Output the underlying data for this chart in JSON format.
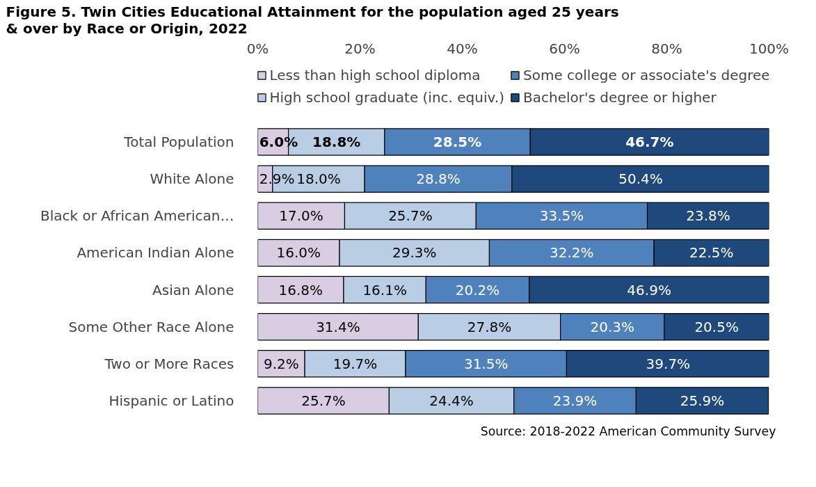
{
  "chart_data": {
    "type": "bar",
    "orientation": "horizontal",
    "stacked": true,
    "title": "Figure 5. Twin Cities Educational Attainment for the population aged 25 years\n& over by Race or Origin, 2022",
    "categories": [
      "Total Population",
      "White Alone",
      "Black or African American…",
      "American Indian Alone",
      "Asian Alone",
      "Some Other Race Alone",
      "Two or More Races",
      "Hispanic or Latino"
    ],
    "series": [
      {
        "name": "Less than high school diploma",
        "color": "#d9cde3",
        "values": [
          6.0,
          2.9,
          17.0,
          16.0,
          16.8,
          31.4,
          9.2,
          25.7
        ],
        "value_labels": [
          "6.0%",
          "2.9%",
          "17.0%",
          "16.0%",
          "16.8%",
          "31.4%",
          "9.2%",
          "25.7%"
        ]
      },
      {
        "name": "High school graduate (inc. equiv.)",
        "color": "#b9cde5",
        "values": [
          18.8,
          18.0,
          25.7,
          29.3,
          16.1,
          27.8,
          19.7,
          24.4
        ],
        "value_labels": [
          "18.8%",
          "18.0%",
          "25.7%",
          "29.3%",
          "16.1%",
          "27.8%",
          "19.7%",
          "24.4%"
        ]
      },
      {
        "name": "Some college or associate's degree",
        "color": "#4f81bd",
        "values": [
          28.5,
          28.8,
          33.5,
          32.2,
          20.2,
          20.3,
          31.5,
          23.9
        ],
        "value_labels": [
          "28.5%",
          "28.8%",
          "33.5%",
          "32.2%",
          "20.2%",
          "20.3%",
          "31.5%",
          "23.9%"
        ]
      },
      {
        "name": "Bachelor's degree or higher",
        "color": "#1f497d",
        "values": [
          46.7,
          50.4,
          23.8,
          22.5,
          46.9,
          20.5,
          39.7,
          25.9
        ],
        "value_labels": [
          "46.7%",
          "50.4%",
          "23.8%",
          "22.5%",
          "46.9%",
          "20.5%",
          "39.7%",
          "25.9%"
        ]
      }
    ],
    "xlim": [
      0,
      100
    ],
    "xticks": [
      {
        "value": 0,
        "label": "0%"
      },
      {
        "value": 20,
        "label": "20%"
      },
      {
        "value": 40,
        "label": "40%"
      },
      {
        "value": 60,
        "label": "60%"
      },
      {
        "value": 80,
        "label": "80%"
      },
      {
        "value": 100,
        "label": "100%"
      }
    ],
    "legend": "top",
    "grid": false,
    "annotations": [
      "Source: 2018-2022 American Community Survey"
    ]
  }
}
